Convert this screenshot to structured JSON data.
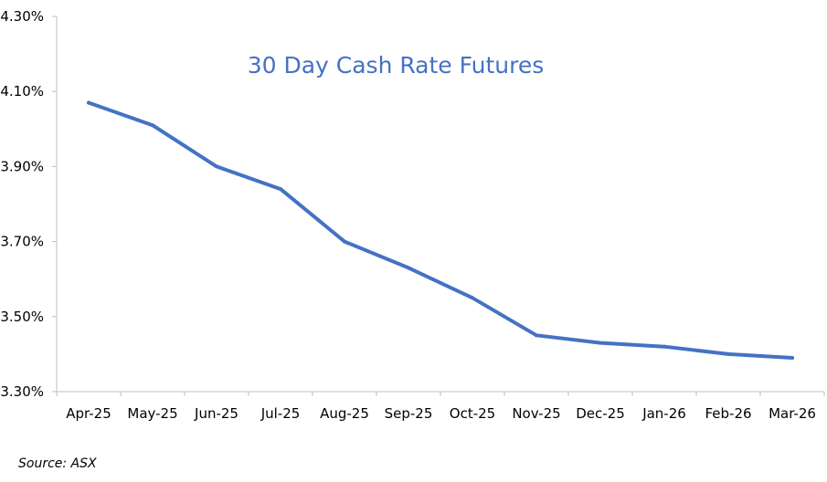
{
  "chart_data": {
    "type": "line",
    "title": "30 Day Cash Rate Futures",
    "xlabel": "",
    "ylabel": "",
    "categories": [
      "Apr-25",
      "May-25",
      "Jun-25",
      "Jul-25",
      "Aug-25",
      "Sep-25",
      "Oct-25",
      "Nov-25",
      "Dec-25",
      "Jan-26",
      "Feb-26",
      "Mar-26"
    ],
    "series": [
      {
        "values": [
          4.07,
          4.01,
          3.9,
          3.84,
          3.7,
          3.63,
          3.55,
          3.45,
          3.43,
          3.42,
          3.4,
          3.39
        ]
      }
    ],
    "ylim": [
      3.3,
      4.3
    ],
    "yticks": [
      3.3,
      3.5,
      3.7,
      3.9,
      4.1,
      4.3
    ],
    "ytick_labels": [
      "3.30%",
      "3.50%",
      "3.70%",
      "3.90%",
      "4.10%",
      "4.30%"
    ],
    "grid": false,
    "legend": "none",
    "line_color": "#4472c4"
  },
  "source": "Source: ASX"
}
